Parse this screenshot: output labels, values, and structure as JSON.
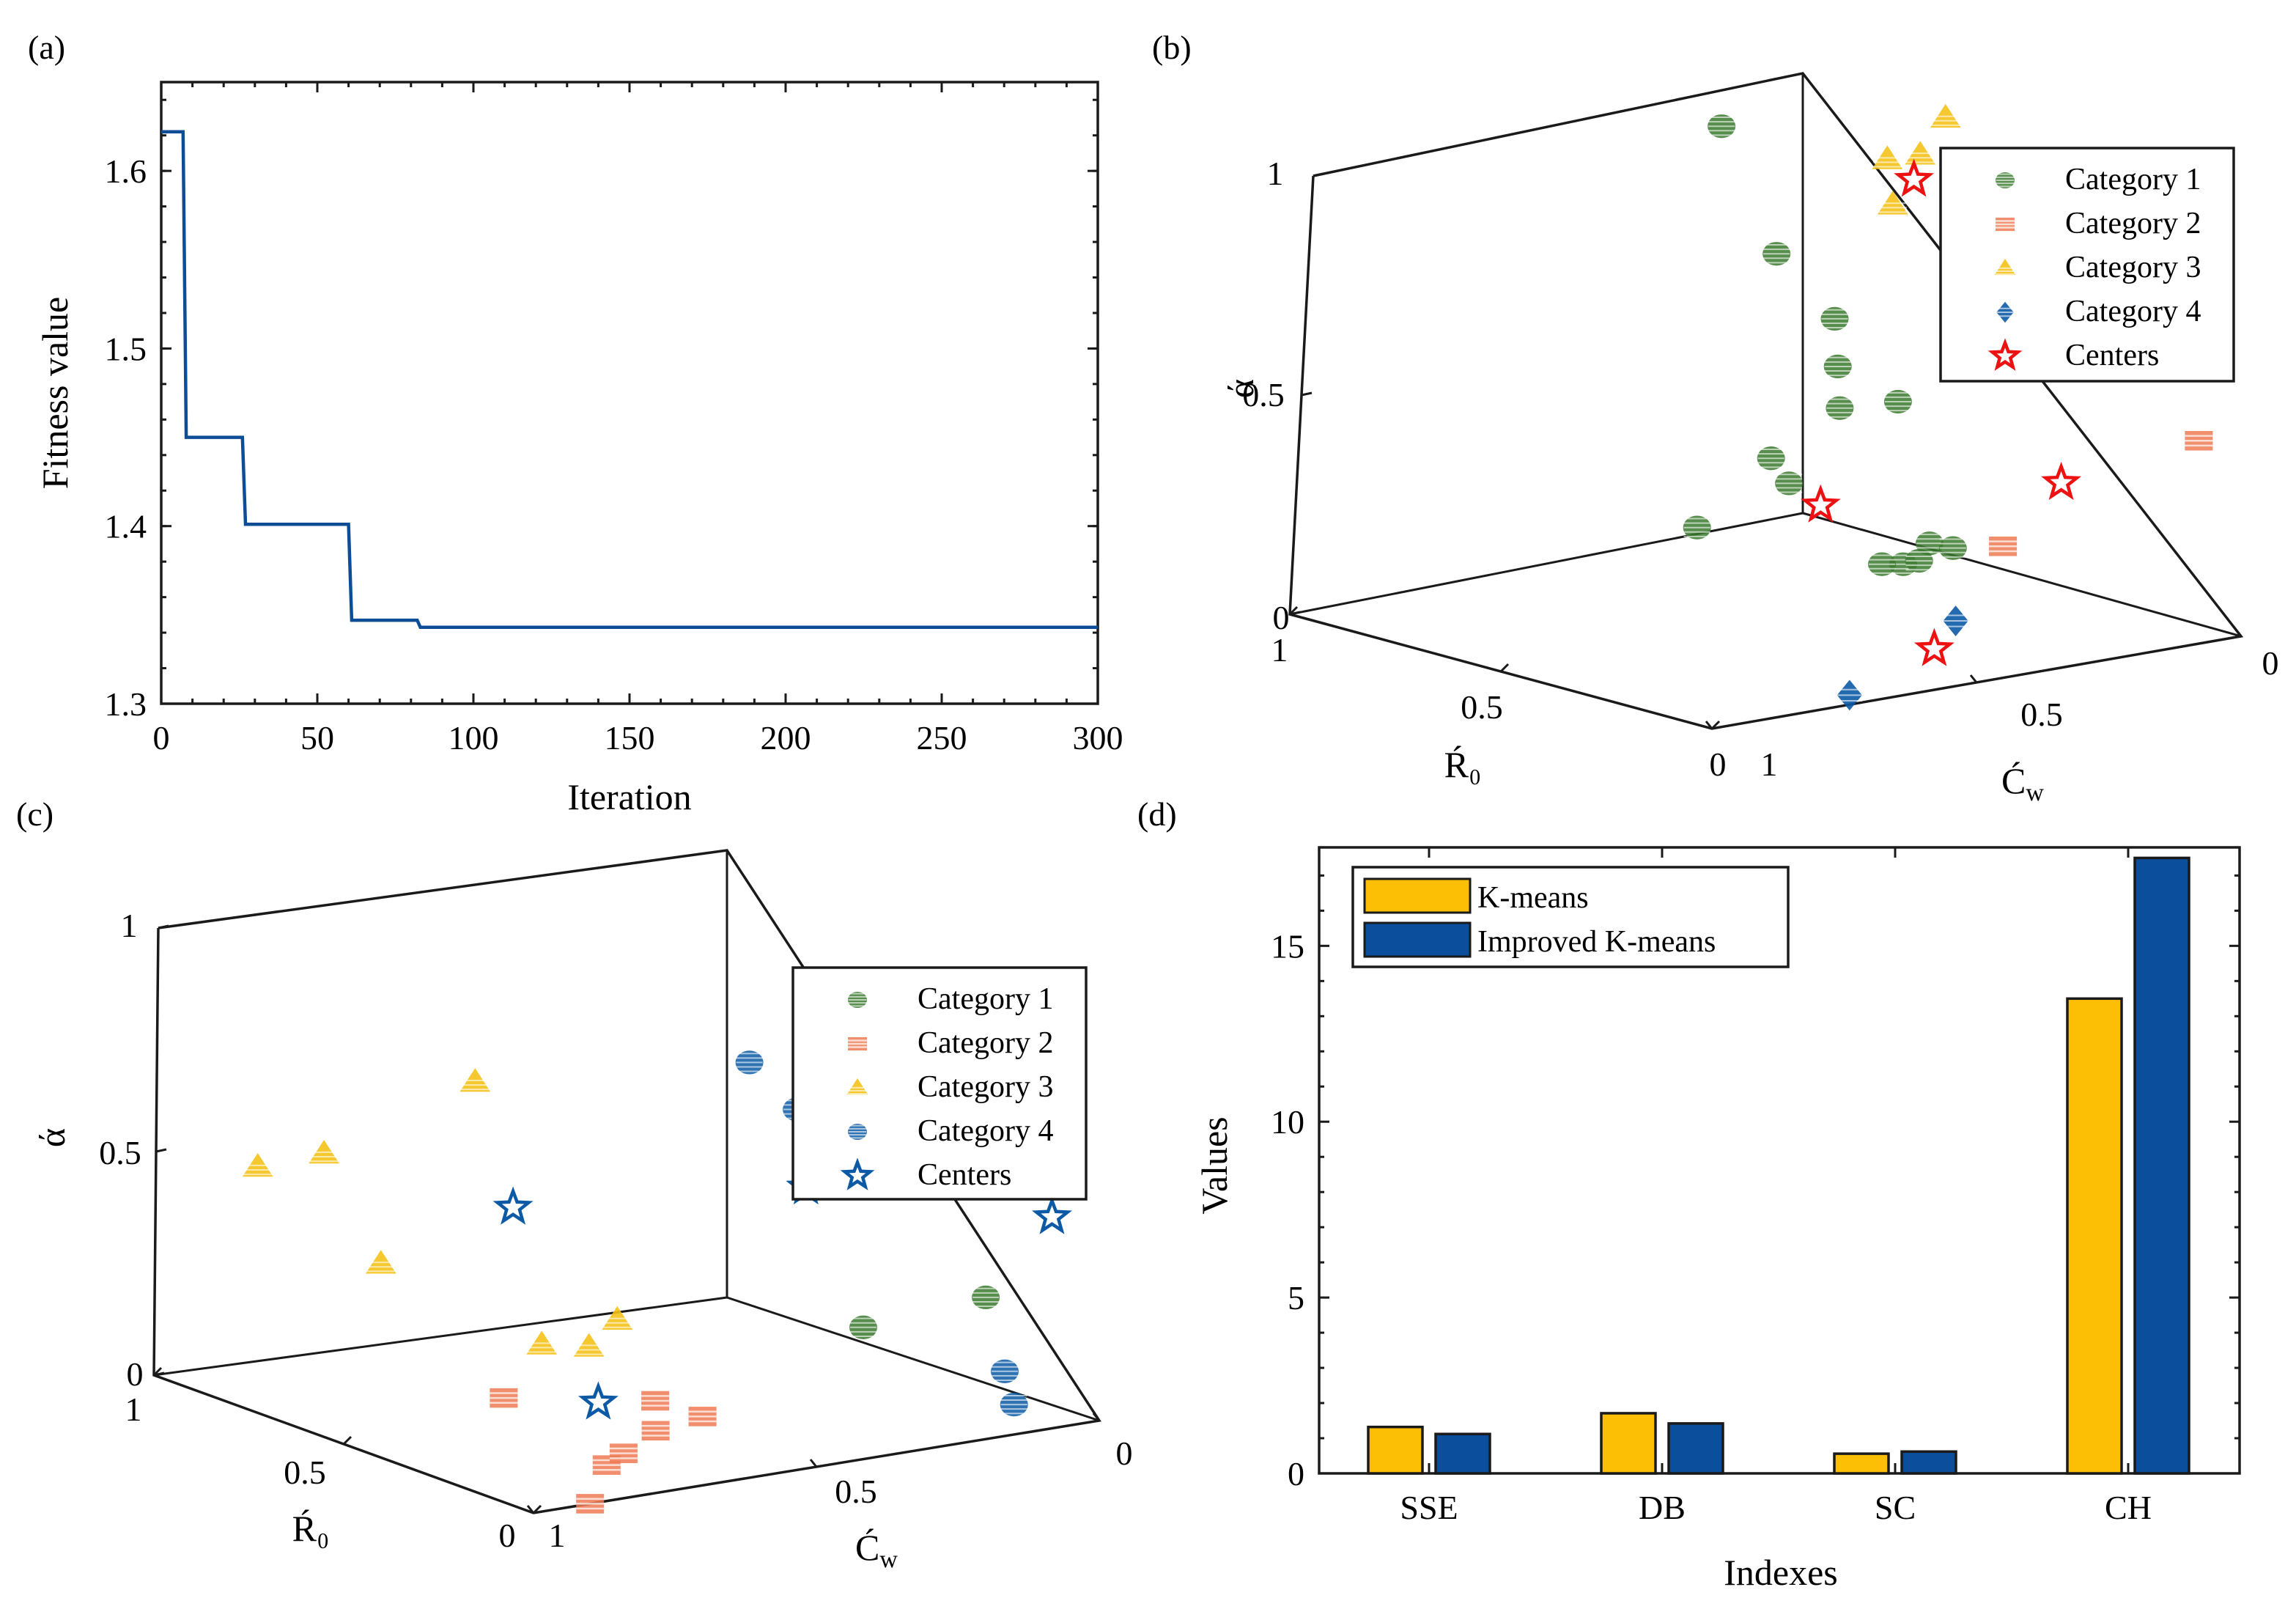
{
  "panel_labels": [
    "(a)",
    "(b)",
    "(c)",
    "(d)"
  ],
  "colors": {
    "line": "#0c4d96",
    "category1": "#3b7a2e",
    "category2": "#ee7a53",
    "category3": "#f4c21a",
    "category4": "#0c5aa6",
    "centers_b": "#ee1111",
    "centers_c": "#0c5aa6",
    "kmeans": "#fdbf06",
    "improved": "#0a4e9c"
  },
  "chart_data": [
    {
      "id": "a",
      "type": "line",
      "title": "",
      "xlabel": "Iteration",
      "ylabel": "Fitness value",
      "xlim": [
        0,
        300
      ],
      "ylim": [
        1.3,
        1.65
      ],
      "xticks": [
        "0",
        "50",
        "100",
        "150",
        "200",
        "250",
        "300"
      ],
      "yticks": [
        "1.3",
        "1.4",
        "1.5",
        "1.6"
      ],
      "series": [
        {
          "name": "Fitness value",
          "step": true,
          "x": [
            0,
            7,
            8,
            26,
            27,
            60,
            61,
            82,
            83,
            300
          ],
          "y": [
            1.622,
            1.622,
            1.45,
            1.45,
            1.401,
            1.401,
            1.347,
            1.347,
            1.343,
            1.343
          ]
        }
      ]
    },
    {
      "id": "b",
      "type": "scatter",
      "dims": 3,
      "xlabel": "Ŕ₀",
      "ylabel": "Ć",
      "ylabel_sub": "w",
      "zlabel": "ά",
      "x_ticks": [
        "0",
        "0.5",
        "1"
      ],
      "y_ticks": [
        "0",
        "0.5",
        "1"
      ],
      "z_ticks": [
        "0",
        "0.5",
        "1"
      ],
      "legend": [
        "Category 1",
        "Category 2",
        "Category 3",
        "Category 4",
        "Centers"
      ],
      "series": [
        {
          "name": "Category 1",
          "marker": "circle",
          "points": [
            [
              0.98,
              0.2,
              0.95
            ],
            [
              0.95,
              0.12,
              0.65
            ],
            [
              0.9,
              0.05,
              0.5
            ],
            [
              0.83,
              0.1,
              0.42
            ],
            [
              0.75,
              0.05,
              0.35
            ],
            [
              0.7,
              0.2,
              0.38
            ],
            [
              0.8,
              0.25,
              0.25
            ],
            [
              0.72,
              0.28,
              0.22
            ],
            [
              0.55,
              0.15,
              0.1
            ],
            [
              0.62,
              0.05,
              0.05
            ],
            [
              0.65,
              0.12,
              0.02
            ],
            [
              0.7,
              0.05,
              0.0
            ],
            [
              0.6,
              0.2,
              0.05
            ],
            [
              0.85,
              0.35,
              0.1
            ]
          ]
        },
        {
          "name": "Category 2",
          "marker": "square",
          "points": [
            [
              0.1,
              0.0,
              0.42
            ],
            [
              0.0,
              0.45,
              0.3
            ]
          ]
        },
        {
          "name": "Category 3",
          "marker": "triangle",
          "points": [
            [
              0.7,
              0.0,
              1.0
            ],
            [
              0.76,
              0.0,
              0.9
            ],
            [
              0.65,
              0.15,
              0.95
            ],
            [
              0.35,
              0.15,
              0.9
            ],
            [
              0.8,
              0.02,
              0.78
            ]
          ]
        },
        {
          "name": "Category 4",
          "marker": "diamond",
          "points": [
            [
              0.3,
              0.3,
              0.02
            ],
            [
              0.05,
              0.7,
              0.0
            ]
          ]
        },
        {
          "name": "Centers",
          "marker": "star",
          "points": [
            [
              0.75,
              0.02,
              0.85
            ],
            [
              0.62,
              0.3,
              0.2
            ],
            [
              0.05,
              0.3,
              0.4
            ],
            [
              0.1,
              0.5,
              0.05
            ]
          ]
        }
      ]
    },
    {
      "id": "c",
      "type": "scatter",
      "dims": 3,
      "xlabel": "Ŕ₀",
      "ylabel": "Ć",
      "ylabel_sub": "w",
      "zlabel": "ά",
      "x_ticks": [
        "0",
        "0.5",
        "1"
      ],
      "y_ticks": [
        "0",
        "0.5",
        "1"
      ],
      "z_ticks": [
        "0",
        "0.5",
        "1"
      ],
      "legend": [
        "Category 1",
        "Category 2",
        "Category 3",
        "Category 4",
        "Centers"
      ],
      "series": [
        {
          "name": "Category 1",
          "marker": "circle",
          "points": [
            [
              0.1,
              0.35,
              0.25
            ],
            [
              0.15,
              0.1,
              0.25
            ]
          ]
        },
        {
          "name": "Category 2",
          "marker": "square",
          "points": [
            [
              0.0,
              0.9,
              0.0
            ],
            [
              0.18,
              0.75,
              0.0
            ],
            [
              0.18,
              0.72,
              0.02
            ],
            [
              0.2,
              0.65,
              0.05
            ],
            [
              0.35,
              0.55,
              0.05
            ],
            [
              0.3,
              0.5,
              0.02
            ],
            [
              0.6,
              0.65,
              0.0
            ]
          ]
        },
        {
          "name": "Category 3",
          "marker": "triangle",
          "points": [
            [
              0.95,
              0.85,
              0.45
            ],
            [
              0.85,
              0.8,
              0.5
            ],
            [
              0.75,
              0.6,
              0.65
            ],
            [
              0.7,
              0.8,
              0.3
            ],
            [
              0.5,
              0.65,
              0.15
            ],
            [
              0.45,
              0.6,
              0.15
            ],
            [
              0.45,
              0.55,
              0.2
            ]
          ]
        },
        {
          "name": "Category 4",
          "marker": "circle",
          "points": [
            [
              0.4,
              0.35,
              0.75
            ],
            [
              0.35,
              0.3,
              0.65
            ],
            [
              0.05,
              0.15,
              0.7
            ],
            [
              0.1,
              0.1,
              0.1
            ],
            [
              0.15,
              0.05,
              0.0
            ]
          ]
        },
        {
          "name": "Centers",
          "marker": "star",
          "points": [
            [
              0.65,
              0.6,
              0.4
            ],
            [
              0.4,
              0.25,
              0.45
            ],
            [
              0.05,
              0.05,
              0.45
            ],
            [
              0.5,
              0.55,
              0.0
            ]
          ]
        }
      ]
    },
    {
      "id": "d",
      "type": "bar",
      "xlabel": "Indexes",
      "ylabel": "Values",
      "categories": [
        "SSE",
        "DB",
        "SC",
        "CH"
      ],
      "ylim": [
        0,
        17.8
      ],
      "yticks": [
        "0",
        "5",
        "10",
        "15"
      ],
      "series": [
        {
          "name": "K-means",
          "values": [
            1.32,
            1.71,
            0.56,
            13.5
          ]
        },
        {
          "name": "Improved K-means",
          "values": [
            1.12,
            1.42,
            0.62,
            17.5
          ]
        }
      ]
    }
  ]
}
